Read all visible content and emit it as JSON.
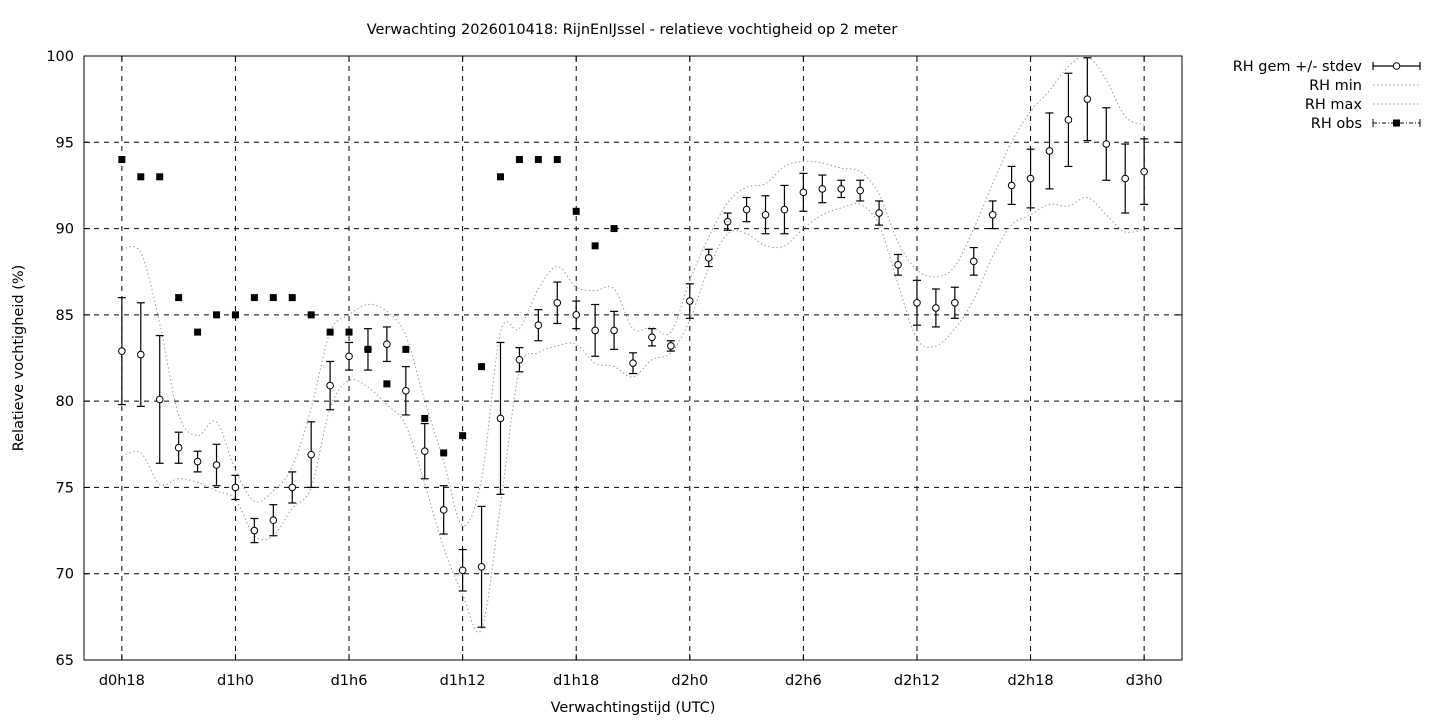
{
  "chart_data": {
    "type": "line",
    "title": "Verwachting 2026010418: RijnEnIJssel - relatieve vochtigheid op 2 meter",
    "xlabel": "Verwachtingstijd (UTC)",
    "ylabel": "Relatieve vochtigheid (%)",
    "xlim": [
      -2,
      56
    ],
    "ylim": [
      65,
      100
    ],
    "grid": true,
    "legend_position": "outside-top-right",
    "x_tick_values": [
      0,
      6,
      12,
      18,
      24,
      30,
      36,
      42,
      48,
      54
    ],
    "x_tick_labels": [
      "d0h18",
      "d1h0",
      "d1h6",
      "d1h12",
      "d1h18",
      "d2h0",
      "d2h6",
      "d2h12",
      "d2h18",
      "d3h0"
    ],
    "y_ticks": [
      65,
      70,
      75,
      80,
      85,
      90,
      95,
      100
    ],
    "legend": [
      "RH gem +/- stdev",
      "RH min",
      "RH max",
      "RH obs"
    ],
    "x": [
      0,
      1,
      2,
      3,
      4,
      5,
      6,
      7,
      8,
      9,
      10,
      11,
      12,
      13,
      14,
      15,
      16,
      17,
      18,
      19,
      20,
      21,
      22,
      23,
      24,
      25,
      26,
      27,
      28,
      29,
      30,
      31,
      32,
      33,
      34,
      35,
      36,
      37,
      38,
      39,
      40,
      41,
      42,
      43,
      44,
      45,
      46,
      47,
      48,
      49,
      50,
      51,
      52,
      53,
      54
    ],
    "series": [
      {
        "name": "RH gem +/- stdev",
        "mean": [
          82.9,
          82.7,
          80.1,
          77.3,
          76.5,
          76.3,
          75.0,
          72.5,
          73.1,
          75.0,
          76.9,
          80.9,
          82.6,
          83.0,
          83.3,
          80.6,
          77.1,
          73.7,
          70.2,
          70.4,
          79.0,
          82.4,
          84.4,
          85.7,
          85.0,
          84.1,
          84.1,
          82.2,
          83.7,
          83.2,
          85.8,
          88.3,
          90.4,
          91.1,
          90.8,
          91.1,
          92.1,
          92.3,
          92.3,
          92.2,
          90.9,
          87.9,
          85.7,
          85.4,
          85.7,
          88.1,
          90.8,
          92.5,
          92.9,
          94.5,
          96.3,
          97.5,
          94.9,
          92.9,
          93.3
        ],
        "stdev": [
          3.1,
          3.0,
          3.7,
          0.9,
          0.6,
          1.2,
          0.7,
          0.7,
          0.9,
          0.9,
          1.9,
          1.4,
          0.8,
          1.2,
          1.0,
          1.4,
          1.6,
          1.4,
          1.2,
          3.5,
          4.4,
          0.7,
          0.9,
          1.2,
          0.8,
          1.5,
          1.1,
          0.6,
          0.5,
          0.3,
          1.0,
          0.5,
          0.5,
          0.7,
          1.1,
          1.4,
          1.1,
          0.8,
          0.5,
          0.6,
          0.7,
          0.6,
          1.3,
          1.1,
          0.9,
          0.8,
          0.8,
          1.1,
          1.7,
          2.2,
          2.7,
          2.4,
          2.1,
          2.0,
          1.9
        ]
      },
      {
        "name": "RH min",
        "values": [
          76.8,
          77.0,
          75.2,
          75.5,
          75.3,
          74.8,
          74.3,
          72.2,
          72.2,
          73.8,
          75.0,
          79.6,
          81.2,
          80.8,
          79.8,
          78.6,
          75.2,
          71.5,
          68.8,
          66.8,
          74.0,
          81.8,
          82.8,
          83.2,
          83.3,
          82.2,
          82.0,
          81.4,
          82.4,
          82.8,
          84.7,
          87.7,
          89.7,
          89.7,
          89.0,
          89.0,
          90.0,
          90.8,
          91.2,
          91.4,
          90.2,
          86.8,
          83.6,
          83.2,
          84.2,
          85.9,
          88.4,
          90.2,
          90.8,
          91.4,
          91.3,
          91.8,
          90.8,
          89.8,
          90.0
        ]
      },
      {
        "name": "RH max",
        "values": [
          88.8,
          88.6,
          84.5,
          79.2,
          78.0,
          78.8,
          76.0,
          74.2,
          74.8,
          76.2,
          79.6,
          84.0,
          85.0,
          85.6,
          85.2,
          83.8,
          80.0,
          76.5,
          72.8,
          75.5,
          84.0,
          84.2,
          86.5,
          87.8,
          86.6,
          86.4,
          86.5,
          84.2,
          84.3,
          84.0,
          87.0,
          89.5,
          91.5,
          92.4,
          92.6,
          93.6,
          93.9,
          93.8,
          93.5,
          93.3,
          92.0,
          89.2,
          87.6,
          87.2,
          87.8,
          90.0,
          92.6,
          95.0,
          96.8,
          98.0,
          99.4,
          100.0,
          98.6,
          96.5,
          96.0
        ]
      },
      {
        "name": "RH obs",
        "x": [
          0,
          1,
          2,
          3,
          4,
          5,
          6,
          7,
          8,
          9,
          10,
          11,
          12,
          13,
          14,
          15,
          16,
          17,
          18,
          19,
          20,
          21,
          22,
          23,
          24,
          25,
          26
        ],
        "values": [
          94,
          93,
          93,
          86,
          84,
          85,
          85,
          86,
          86,
          86,
          85,
          84,
          84,
          83,
          81,
          83,
          79,
          77,
          78,
          82,
          93,
          94,
          94,
          94,
          91,
          89,
          90
        ]
      }
    ]
  }
}
